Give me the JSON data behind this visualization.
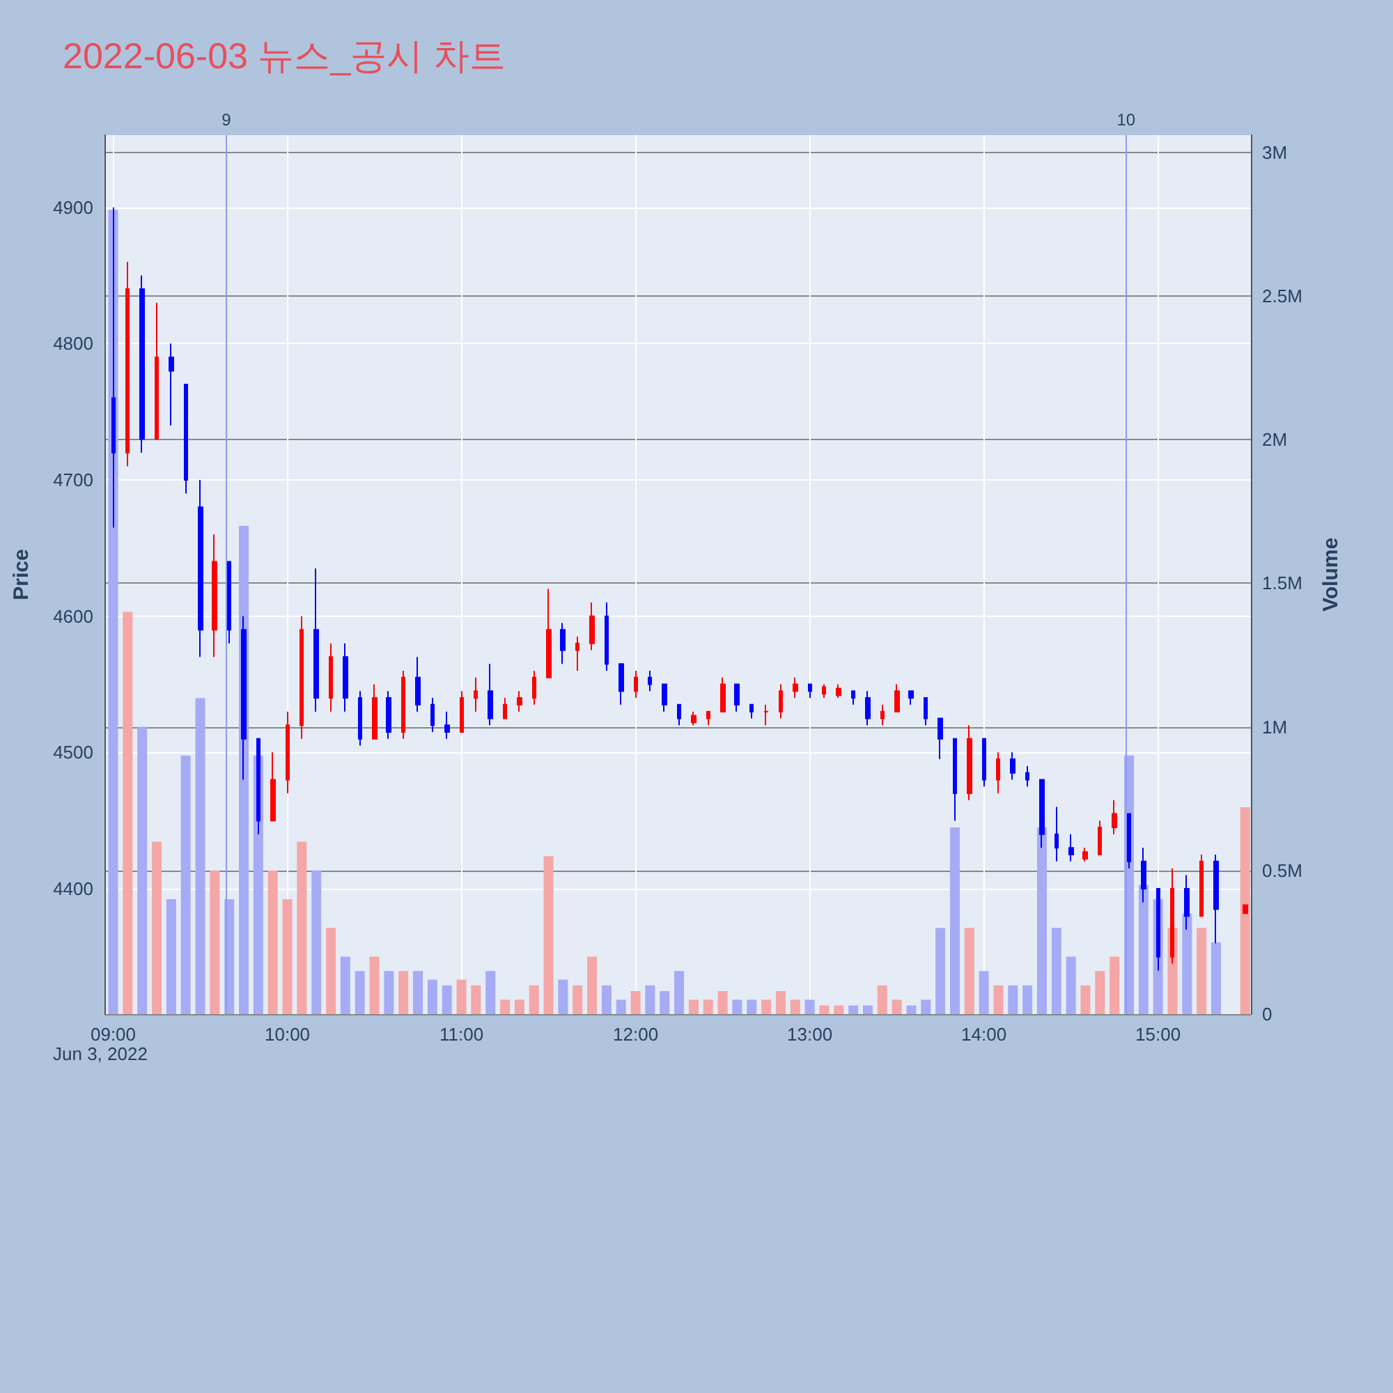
{
  "chart_data": {
    "type": "candlestick",
    "title": "2022-06-03 뉴스_공시 차트",
    "ylabel": "Price",
    "y2label": "Volume",
    "annotations": [
      "Jun 3, 2022"
    ],
    "x": [
      "2022-06-03T09:00",
      "2022-06-03T09:05",
      "2022-06-03T09:10",
      "2022-06-03T09:15",
      "2022-06-03T09:20",
      "2022-06-03T09:25",
      "2022-06-03T09:30",
      "2022-06-03T09:35",
      "2022-06-03T09:40",
      "2022-06-03T09:45",
      "2022-06-03T09:50",
      "2022-06-03T09:55",
      "2022-06-03T10:00",
      "2022-06-03T10:05",
      "2022-06-03T10:10",
      "2022-06-03T10:15",
      "2022-06-03T10:20",
      "2022-06-03T10:25",
      "2022-06-03T10:30",
      "2022-06-03T10:35",
      "2022-06-03T10:40",
      "2022-06-03T10:45",
      "2022-06-03T10:50",
      "2022-06-03T10:55",
      "2022-06-03T11:00",
      "2022-06-03T11:05",
      "2022-06-03T11:10",
      "2022-06-03T11:15",
      "2022-06-03T11:20",
      "2022-06-03T11:25",
      "2022-06-03T11:30",
      "2022-06-03T11:35",
      "2022-06-03T11:40",
      "2022-06-03T11:45",
      "2022-06-03T11:50",
      "2022-06-03T11:55",
      "2022-06-03T12:00",
      "2022-06-03T12:05",
      "2022-06-03T12:10",
      "2022-06-03T12:15",
      "2022-06-03T12:20",
      "2022-06-03T12:25",
      "2022-06-03T12:30",
      "2022-06-03T12:35",
      "2022-06-03T12:40",
      "2022-06-03T12:45",
      "2022-06-03T12:50",
      "2022-06-03T12:55",
      "2022-06-03T13:00",
      "2022-06-03T13:05",
      "2022-06-03T13:10",
      "2022-06-03T13:15",
      "2022-06-03T13:20",
      "2022-06-03T13:25",
      "2022-06-03T13:30",
      "2022-06-03T13:35",
      "2022-06-03T13:40",
      "2022-06-03T13:45",
      "2022-06-03T13:50",
      "2022-06-03T13:55",
      "2022-06-03T14:00",
      "2022-06-03T14:05",
      "2022-06-03T14:10",
      "2022-06-03T14:15",
      "2022-06-03T14:20",
      "2022-06-03T14:25",
      "2022-06-03T14:30",
      "2022-06-03T14:35",
      "2022-06-03T14:40",
      "2022-06-03T14:45",
      "2022-06-03T14:50",
      "2022-06-03T14:55",
      "2022-06-03T15:00",
      "2022-06-03T15:05",
      "2022-06-03T15:10",
      "2022-06-03T15:15",
      "2022-06-03T15:20",
      "2022-06-03T15:30"
    ],
    "series": [
      {
        "ohlc": [
          [
            4760,
            4900,
            4665,
            4720
          ],
          [
            4720,
            4860,
            4710,
            4840
          ],
          [
            4840,
            4850,
            4720,
            4730
          ],
          [
            4730,
            4830,
            4730,
            4790
          ],
          [
            4790,
            4800,
            4740,
            4780
          ],
          [
            4770,
            4770,
            4690,
            4700
          ],
          [
            4680,
            4700,
            4570,
            4590
          ],
          [
            4590,
            4660,
            4570,
            4640
          ],
          [
            4640,
            4640,
            4580,
            4590
          ],
          [
            4590,
            4600,
            4480,
            4510
          ],
          [
            4510,
            4510,
            4440,
            4450
          ],
          [
            4450,
            4500,
            4450,
            4480
          ],
          [
            4480,
            4530,
            4470,
            4520
          ],
          [
            4520,
            4600,
            4510,
            4590
          ],
          [
            4590,
            4635,
            4530,
            4540
          ],
          [
            4540,
            4580,
            4530,
            4570
          ],
          [
            4570,
            4580,
            4530,
            4540
          ],
          [
            4540,
            4545,
            4505,
            4510
          ],
          [
            4510,
            4550,
            4510,
            4540
          ],
          [
            4540,
            4545,
            4510,
            4515
          ],
          [
            4515,
            4560,
            4510,
            4555
          ],
          [
            4555,
            4570,
            4530,
            4535
          ],
          [
            4535,
            4540,
            4515,
            4520
          ],
          [
            4520,
            4530,
            4510,
            4515
          ],
          [
            4515,
            4545,
            4515,
            4540
          ],
          [
            4540,
            4555,
            4530,
            4545
          ],
          [
            4545,
            4565,
            4520,
            4525
          ],
          [
            4525,
            4540,
            4525,
            4535
          ],
          [
            4535,
            4545,
            4530,
            4540
          ],
          [
            4540,
            4560,
            4535,
            4555
          ],
          [
            4555,
            4620,
            4555,
            4590
          ],
          [
            4590,
            4595,
            4565,
            4575
          ],
          [
            4575,
            4585,
            4560,
            4580
          ],
          [
            4580,
            4610,
            4575,
            4600
          ],
          [
            4600,
            4610,
            4560,
            4565
          ],
          [
            4565,
            4565,
            4535,
            4545
          ],
          [
            4545,
            4560,
            4540,
            4555
          ],
          [
            4555,
            4560,
            4545,
            4550
          ],
          [
            4550,
            4550,
            4530,
            4535
          ],
          [
            4535,
            4535,
            4520,
            4525
          ],
          [
            4522,
            4530,
            4520,
            4527
          ],
          [
            4525,
            4530,
            4520,
            4530
          ],
          [
            4530,
            4555,
            4530,
            4550
          ],
          [
            4550,
            4550,
            4530,
            4535
          ],
          [
            4535,
            4535,
            4525,
            4530
          ],
          [
            4530,
            4535,
            4520,
            4530
          ],
          [
            4530,
            4550,
            4525,
            4545
          ],
          [
            4545,
            4555,
            4540,
            4550
          ],
          [
            4550,
            4550,
            4540,
            4545
          ],
          [
            4543,
            4550,
            4540,
            4548
          ],
          [
            4542,
            4550,
            4540,
            4547
          ],
          [
            4545,
            4545,
            4535,
            4540
          ],
          [
            4540,
            4545,
            4520,
            4525
          ],
          [
            4525,
            4535,
            4520,
            4530
          ],
          [
            4530,
            4550,
            4530,
            4545
          ],
          [
            4545,
            4545,
            4535,
            4540
          ],
          [
            4540,
            4540,
            4520,
            4525
          ],
          [
            4525,
            4525,
            4495,
            4510
          ],
          [
            4510,
            4510,
            4450,
            4470
          ],
          [
            4470,
            4520,
            4465,
            4510
          ],
          [
            4510,
            4510,
            4475,
            4480
          ],
          [
            4480,
            4500,
            4470,
            4495
          ],
          [
            4495,
            4500,
            4480,
            4485
          ],
          [
            4485,
            4490,
            4475,
            4480
          ],
          [
            4480,
            4480,
            4430,
            4440
          ],
          [
            4440,
            4460,
            4420,
            4430
          ],
          [
            4430,
            4440,
            4420,
            4425
          ],
          [
            4422,
            4430,
            4420,
            4427
          ],
          [
            4425,
            4450,
            4425,
            4445
          ],
          [
            4445,
            4465,
            4440,
            4455
          ],
          [
            4455,
            4455,
            4415,
            4420
          ],
          [
            4420,
            4430,
            4390,
            4400
          ],
          [
            4400,
            4400,
            4340,
            4350
          ],
          [
            4350,
            4415,
            4345,
            4400
          ],
          [
            4400,
            4410,
            4370,
            4380
          ],
          [
            4380,
            4425,
            4380,
            4420
          ],
          [
            4420,
            4425,
            4360,
            4385
          ],
          [
            4382,
            4388,
            4382,
            4388
          ]
        ],
        "colors": [
          "#0000ff",
          "#ff0000",
          "#0000ff",
          "#ff0000",
          "#0000ff",
          "#0000ff",
          "#0000ff",
          "#ff0000",
          "#0000ff",
          "#0000ff",
          "#0000ff",
          "#ff0000",
          "#ff0000",
          "#ff0000",
          "#0000ff",
          "#ff0000",
          "#0000ff",
          "#0000ff",
          "#ff0000",
          "#0000ff",
          "#ff0000",
          "#0000ff",
          "#0000ff",
          "#0000ff",
          "#ff0000",
          "#ff0000",
          "#0000ff",
          "#ff0000",
          "#ff0000",
          "#ff0000",
          "#ff0000",
          "#0000ff",
          "#ff0000",
          "#ff0000",
          "#0000ff",
          "#0000ff",
          "#ff0000",
          "#0000ff",
          "#0000ff",
          "#0000ff",
          "#ff0000",
          "#ff0000",
          "#ff0000",
          "#0000ff",
          "#0000ff",
          "#ff0000",
          "#ff0000",
          "#ff0000",
          "#0000ff",
          "#ff0000",
          "#ff0000",
          "#0000ff",
          "#0000ff",
          "#ff0000",
          "#ff0000",
          "#0000ff",
          "#0000ff",
          "#0000ff",
          "#0000ff",
          "#ff0000",
          "#0000ff",
          "#ff0000",
          "#0000ff",
          "#0000ff",
          "#0000ff",
          "#0000ff",
          "#0000ff",
          "#ff0000",
          "#ff0000",
          "#ff0000",
          "#0000ff",
          "#0000ff",
          "#0000ff",
          "#ff0000",
          "#0000ff",
          "#ff0000",
          "#0000ff",
          "#ff0000"
        ]
      },
      {
        "type": "bar",
        "axis": "y2",
        "values": [
          2800000,
          1400000,
          1000000,
          600000,
          400000,
          900000,
          1100000,
          500000,
          400000,
          1700000,
          900000,
          500000,
          400000,
          600000,
          500000,
          300000,
          200000,
          150000,
          200000,
          150000,
          150000,
          150000,
          120000,
          100000,
          120000,
          100000,
          150000,
          50000,
          50000,
          100000,
          550000,
          120000,
          100000,
          200000,
          100000,
          50000,
          80000,
          100000,
          80000,
          150000,
          50000,
          50000,
          80000,
          50000,
          50000,
          50000,
          80000,
          50000,
          50000,
          30000,
          30000,
          30000,
          30000,
          100000,
          50000,
          30000,
          50000,
          300000,
          650000,
          300000,
          150000,
          100000,
          100000,
          100000,
          650000,
          300000,
          200000,
          100000,
          150000,
          200000,
          900000,
          450000,
          400000,
          300000,
          350000,
          300000,
          250000,
          720000
        ],
        "colors": [
          "#a6abf5",
          "#f5a6a6",
          "#a6abf5",
          "#f5a6a6",
          "#a6abf5",
          "#a6abf5",
          "#a6abf5",
          "#f5a6a6",
          "#a6abf5",
          "#a6abf5",
          "#a6abf5",
          "#f5a6a6",
          "#f5a6a6",
          "#f5a6a6",
          "#a6abf5",
          "#f5a6a6",
          "#a6abf5",
          "#a6abf5",
          "#f5a6a6",
          "#a6abf5",
          "#f5a6a6",
          "#a6abf5",
          "#a6abf5",
          "#a6abf5",
          "#f5a6a6",
          "#f5a6a6",
          "#a6abf5",
          "#f5a6a6",
          "#f5a6a6",
          "#f5a6a6",
          "#f5a6a6",
          "#a6abf5",
          "#f5a6a6",
          "#f5a6a6",
          "#a6abf5",
          "#a6abf5",
          "#f5a6a6",
          "#a6abf5",
          "#a6abf5",
          "#a6abf5",
          "#f5a6a6",
          "#f5a6a6",
          "#f5a6a6",
          "#a6abf5",
          "#a6abf5",
          "#f5a6a6",
          "#f5a6a6",
          "#f5a6a6",
          "#a6abf5",
          "#f5a6a6",
          "#f5a6a6",
          "#a6abf5",
          "#a6abf5",
          "#f5a6a6",
          "#f5a6a6",
          "#a6abf5",
          "#a6abf5",
          "#a6abf5",
          "#a6abf5",
          "#f5a6a6",
          "#a6abf5",
          "#f5a6a6",
          "#a6abf5",
          "#a6abf5",
          "#a6abf5",
          "#a6abf5",
          "#a6abf5",
          "#f5a6a6",
          "#f5a6a6",
          "#f5a6a6",
          "#a6abf5",
          "#a6abf5",
          "#a6abf5",
          "#f5a6a6",
          "#a6abf5",
          "#f5a6a6",
          "#a6abf5",
          "#f5a6a6"
        ]
      }
    ],
    "xlim": [
      "2022-06-03T08:57",
      "2022-06-03T15:32"
    ],
    "xticks": [
      {
        "value": "2022-06-03T09:00",
        "label": "09:00"
      },
      {
        "value": "2022-06-03T10:00",
        "label": "10:00"
      },
      {
        "value": "2022-06-03T11:00",
        "label": "11:00"
      },
      {
        "value": "2022-06-03T12:00",
        "label": "12:00"
      },
      {
        "value": "2022-06-03T13:00",
        "label": "13:00"
      },
      {
        "value": "2022-06-03T14:00",
        "label": "14:00"
      },
      {
        "value": "2022-06-03T15:00",
        "label": "15:00"
      }
    ],
    "ylim": [
      4308,
      4953
    ],
    "yticks": [
      4400,
      4500,
      4600,
      4700,
      4800,
      4900
    ],
    "y2lim": [
      0,
      3060000
    ],
    "y2ticks": [
      {
        "value": 0,
        "label": "0"
      },
      {
        "value": 500000,
        "label": "0.5M"
      },
      {
        "value": 1000000,
        "label": "1M"
      },
      {
        "value": 1500000,
        "label": "1.5M"
      },
      {
        "value": 2000000,
        "label": "2M"
      },
      {
        "value": 2500000,
        "label": "2.5M"
      },
      {
        "value": 3000000,
        "label": "3M"
      }
    ],
    "ref_lines": [
      {
        "axis": "x",
        "value": "2022-06-03T09:39",
        "label": "9",
        "color": "#8c9cf0"
      },
      {
        "axis": "x",
        "value": "2022-06-03T14:49",
        "label": "10",
        "color": "#8c9cf0"
      }
    ],
    "grid": true
  }
}
